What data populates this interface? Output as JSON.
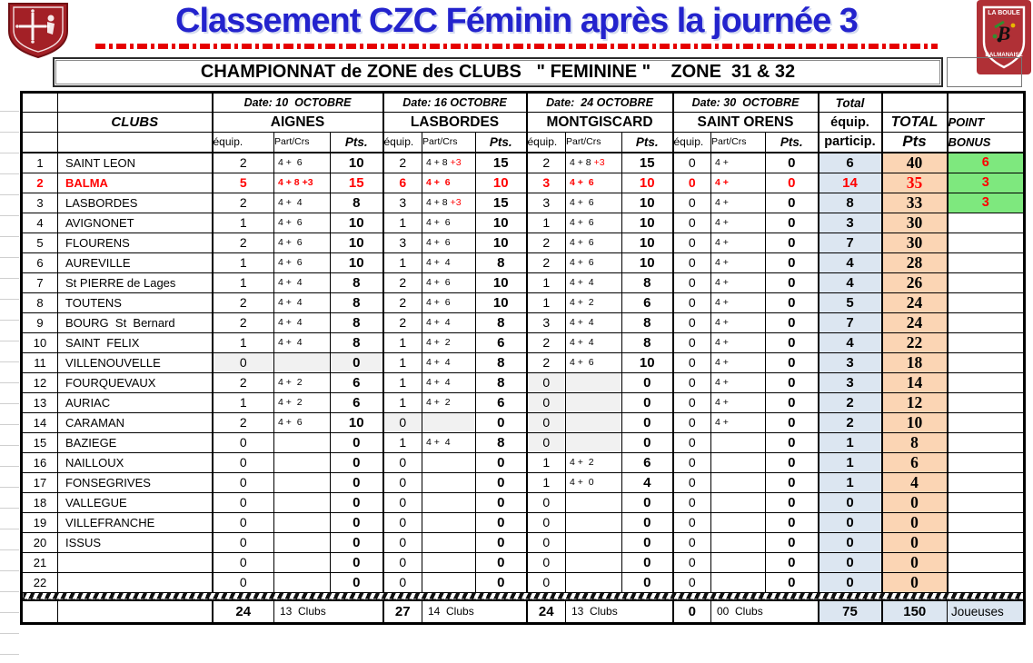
{
  "page": {
    "title": "Classement CZC Féminin après la journée 3",
    "table_title": "CHAMPIONNAT de ZONE des CLUBS   \" FEMININE \"    ZONE  31 & 32"
  },
  "logos": {
    "la_boule": "LA BOULE",
    "balmanaise": "BALMANAISE"
  },
  "colors": {
    "title_blue": "#2323cd",
    "highlight_red": "#ff0000",
    "participation_col_blue": "#dce6f1",
    "total_pts_col_peach": "#fbd5b4",
    "bonus_green": "#7ee87e",
    "crest_red": "#a32026",
    "shade_gray": "#f1f1f1"
  },
  "header": {
    "clubs_label": "CLUBS",
    "venues": [
      {
        "date": "Date: 10  OCTOBRE",
        "name": "AIGNES"
      },
      {
        "date": "Date: 16 OCTOBRE",
        "name": "LASBORDES"
      },
      {
        "date": "Date:  24 OCTOBRE",
        "name": "MONTGISCARD"
      },
      {
        "date": "Date: 30  OCTOBRE",
        "name": "SAINT ORENS"
      }
    ],
    "sub": {
      "equip": "équip.",
      "part": "Part/Crs",
      "pts": "Pts."
    },
    "total_head": "Total",
    "total_equip_1": "équip.",
    "total_equip_2": "particip.",
    "total_pts_1": "TOTAL",
    "total_pts_2": "Pts",
    "bonus_1": "POINT",
    "bonus_2": "BONUS"
  },
  "rows": [
    {
      "rank": "1",
      "club": "SAINT LEON",
      "red": false,
      "v": [
        [
          "2",
          "4 +  6",
          "",
          "10",
          0
        ],
        [
          "2",
          "4 + 8 ",
          "+3",
          "15",
          0
        ],
        [
          "2",
          "4 + 8 ",
          "+3",
          "15",
          0
        ],
        [
          "0",
          "4 +",
          "",
          "0",
          0
        ]
      ],
      "te": "6",
      "tp": "40",
      "bonus": "6"
    },
    {
      "rank": "2",
      "club": "BALMA",
      "red": true,
      "v": [
        [
          "5",
          "4 + 8 +3",
          "",
          "15",
          0
        ],
        [
          "6",
          "4 +  6",
          "",
          "10",
          0
        ],
        [
          "3",
          "4 +  6",
          "",
          "10",
          0
        ],
        [
          "0",
          "4 +",
          "",
          "0",
          0
        ]
      ],
      "te": "14",
      "tp": "35",
      "bonus": "3"
    },
    {
      "rank": "3",
      "club": "LASBORDES",
      "red": false,
      "v": [
        [
          "2",
          "4 +  4",
          "",
          "8",
          0
        ],
        [
          "3",
          "4 + 8 ",
          "+3",
          "15",
          0
        ],
        [
          "3",
          "4 +  6",
          "",
          "10",
          0
        ],
        [
          "0",
          "4 +",
          "",
          "0",
          0
        ]
      ],
      "te": "8",
      "tp": "33",
      "bonus": "3"
    },
    {
      "rank": "4",
      "club": "AVIGNONET",
      "red": false,
      "v": [
        [
          "1",
          "4 +  6",
          "",
          "10",
          0
        ],
        [
          "1",
          "4 +  6",
          "",
          "10",
          0
        ],
        [
          "1",
          "4 +  6",
          "",
          "10",
          0
        ],
        [
          "0",
          "4 +",
          "",
          "0",
          0
        ]
      ],
      "te": "3",
      "tp": "30",
      "bonus": ""
    },
    {
      "rank": "5",
      "club": "FLOURENS",
      "red": false,
      "v": [
        [
          "2",
          "4 +  6",
          "",
          "10",
          0
        ],
        [
          "3",
          "4 +  6",
          "",
          "10",
          0
        ],
        [
          "2",
          "4 +  6",
          "",
          "10",
          0
        ],
        [
          "0",
          "4 +",
          "",
          "0",
          0
        ]
      ],
      "te": "7",
      "tp": "30",
      "bonus": ""
    },
    {
      "rank": "6",
      "club": "AUREVILLE",
      "red": false,
      "v": [
        [
          "1",
          "4 +  6",
          "",
          "10",
          0
        ],
        [
          "1",
          "4 +  4",
          "",
          "8",
          0
        ],
        [
          "2",
          "4 +  6",
          "",
          "10",
          0
        ],
        [
          "0",
          "4 +",
          "",
          "0",
          0
        ]
      ],
      "te": "4",
      "tp": "28",
      "bonus": ""
    },
    {
      "rank": "7",
      "club": "St PIERRE de Lages",
      "red": false,
      "v": [
        [
          "1",
          "4 +  4",
          "",
          "8",
          0
        ],
        [
          "2",
          "4 +  6",
          "",
          "10",
          0
        ],
        [
          "1",
          "4 +  4",
          "",
          "8",
          0
        ],
        [
          "0",
          "4 +",
          "",
          "0",
          0
        ]
      ],
      "te": "4",
      "tp": "26",
      "bonus": ""
    },
    {
      "rank": "8",
      "club": "TOUTENS",
      "red": false,
      "v": [
        [
          "2",
          "4 +  4",
          "",
          "8",
          0
        ],
        [
          "2",
          "4 +  6",
          "",
          "10",
          0
        ],
        [
          "1",
          "4 +  2",
          "",
          "6",
          0
        ],
        [
          "0",
          "4 +",
          "",
          "0",
          0
        ]
      ],
      "te": "5",
      "tp": "24",
      "bonus": ""
    },
    {
      "rank": "9",
      "club": "BOURG  St  Bernard",
      "red": false,
      "v": [
        [
          "2",
          "4 +  4",
          "",
          "8",
          0
        ],
        [
          "2",
          "4 +  4",
          "",
          "8",
          0
        ],
        [
          "3",
          "4 +  4",
          "",
          "8",
          0
        ],
        [
          "0",
          "4 +",
          "",
          "0",
          0
        ]
      ],
      "te": "7",
      "tp": "24",
      "bonus": ""
    },
    {
      "rank": "10",
      "club": "SAINT  FELIX",
      "red": false,
      "v": [
        [
          "1",
          "4 +  4",
          "",
          "8",
          0
        ],
        [
          "1",
          "4 +  2",
          "",
          "6",
          0
        ],
        [
          "2",
          "4 +  4",
          "",
          "8",
          0
        ],
        [
          "0",
          "4 +",
          "",
          "0",
          0
        ]
      ],
      "te": "4",
      "tp": "22",
      "bonus": ""
    },
    {
      "rank": "11",
      "club": "VILLENOUVELLE",
      "red": false,
      "v": [
        [
          "0",
          "",
          "",
          "0",
          7
        ],
        [
          "1",
          "4 +  4",
          "",
          "8",
          0
        ],
        [
          "2",
          "4 +  6",
          "",
          "10",
          0
        ],
        [
          "0",
          "4 +",
          "",
          "0",
          0
        ]
      ],
      "te": "3",
      "tp": "18",
      "bonus": ""
    },
    {
      "rank": "12",
      "club": "FOURQUEVAUX",
      "red": false,
      "v": [
        [
          "2",
          "4 +  2",
          "",
          "6",
          0
        ],
        [
          "1",
          "4 +  4",
          "",
          "8",
          0
        ],
        [
          "0",
          "",
          "",
          "0",
          3
        ],
        [
          "0",
          "4 +",
          "",
          "0",
          0
        ]
      ],
      "te": "3",
      "tp": "14",
      "bonus": ""
    },
    {
      "rank": "13",
      "club": "AURIAC",
      "red": false,
      "v": [
        [
          "1",
          "4 +  2",
          "",
          "6",
          0
        ],
        [
          "1",
          "4 +  2",
          "",
          "6",
          0
        ],
        [
          "0",
          "",
          "",
          "0",
          3
        ],
        [
          "0",
          "4 +",
          "",
          "0",
          0
        ]
      ],
      "te": "2",
      "tp": "12",
      "bonus": ""
    },
    {
      "rank": "14",
      "club": "CARAMAN",
      "red": false,
      "v": [
        [
          "2",
          "4 +  6",
          "",
          "10",
          0
        ],
        [
          "0",
          "",
          "",
          "0",
          3
        ],
        [
          "0",
          "",
          "",
          "0",
          3
        ],
        [
          "0",
          "4 +",
          "",
          "0",
          0
        ]
      ],
      "te": "2",
      "tp": "10",
      "bonus": ""
    },
    {
      "rank": "15",
      "club": "BAZIEGE",
      "red": false,
      "v": [
        [
          "0",
          "",
          "",
          "0",
          0
        ],
        [
          "1",
          "4 +  4",
          "",
          "8",
          0
        ],
        [
          "0",
          "",
          "",
          "0",
          3
        ],
        [
          "0",
          "",
          "",
          "0",
          0
        ]
      ],
      "te": "1",
      "tp": "8",
      "bonus": ""
    },
    {
      "rank": "16",
      "club": "NAILLOUX",
      "red": false,
      "v": [
        [
          "0",
          "",
          "",
          "0",
          0
        ],
        [
          "0",
          "",
          "",
          "0",
          0
        ],
        [
          "1",
          "4 +  2",
          "",
          "6",
          0
        ],
        [
          "0",
          "",
          "",
          "0",
          0
        ]
      ],
      "te": "1",
      "tp": "6",
      "bonus": ""
    },
    {
      "rank": "17",
      "club": "FONSEGRIVES",
      "red": false,
      "v": [
        [
          "0",
          "",
          "",
          "0",
          0
        ],
        [
          "0",
          "",
          "",
          "0",
          0
        ],
        [
          "1",
          "4 +  0",
          "",
          "4",
          0
        ],
        [
          "0",
          "",
          "",
          "0",
          0
        ]
      ],
      "te": "1",
      "tp": "4",
      "bonus": ""
    },
    {
      "rank": "18",
      "club": "VALLEGUE",
      "red": false,
      "v": [
        [
          "0",
          "",
          "",
          "0",
          0
        ],
        [
          "0",
          "",
          "",
          "0",
          0
        ],
        [
          "0",
          "",
          "",
          "0",
          0
        ],
        [
          "0",
          "",
          "",
          "0",
          0
        ]
      ],
      "te": "0",
      "tp": "0",
      "bonus": ""
    },
    {
      "rank": "19",
      "club": "VILLEFRANCHE",
      "red": false,
      "v": [
        [
          "0",
          "",
          "",
          "0",
          0
        ],
        [
          "0",
          "",
          "",
          "0",
          0
        ],
        [
          "0",
          "",
          "",
          "0",
          0
        ],
        [
          "0",
          "",
          "",
          "0",
          0
        ]
      ],
      "te": "0",
      "tp": "0",
      "bonus": ""
    },
    {
      "rank": "20",
      "club": "ISSUS",
      "red": false,
      "v": [
        [
          "0",
          "",
          "",
          "0",
          0
        ],
        [
          "0",
          "",
          "",
          "0",
          0
        ],
        [
          "0",
          "",
          "",
          "0",
          0
        ],
        [
          "0",
          "",
          "",
          "0",
          0
        ]
      ],
      "te": "0",
      "tp": "0",
      "bonus": ""
    },
    {
      "rank": "21",
      "club": "",
      "red": false,
      "v": [
        [
          "0",
          "",
          "",
          "0",
          0
        ],
        [
          "0",
          "",
          "",
          "0",
          0
        ],
        [
          "0",
          "",
          "",
          "0",
          0
        ],
        [
          "0",
          "",
          "",
          "0",
          0
        ]
      ],
      "te": "0",
      "tp": "0",
      "bonus": ""
    },
    {
      "rank": "22",
      "club": "",
      "red": false,
      "v": [
        [
          "0",
          "",
          "",
          "0",
          0
        ],
        [
          "0",
          "",
          "",
          "0",
          0
        ],
        [
          "0",
          "",
          "",
          "0",
          0
        ],
        [
          "0",
          "",
          "",
          "0",
          0
        ]
      ],
      "te": "0",
      "tp": "0",
      "bonus": ""
    }
  ],
  "totals": {
    "groups": [
      {
        "equip": "24",
        "clubs": "13  Clubs"
      },
      {
        "equip": "27",
        "clubs": "14  Clubs"
      },
      {
        "equip": "24",
        "clubs": "13  Clubs"
      },
      {
        "equip": "0",
        "clubs": "00  Clubs"
      }
    ],
    "equip_total": "75",
    "pts_total": "150",
    "right_label": "Joueuses"
  }
}
